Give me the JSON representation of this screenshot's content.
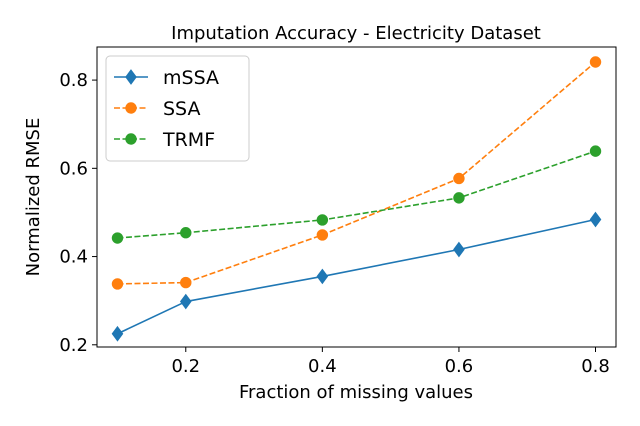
{
  "chart_data": {
    "type": "line",
    "title": "Imputation Accuracy - Electricity Dataset",
    "xlabel": "Fraction of missing values",
    "ylabel": "Normalized RMSE",
    "x": [
      0.1,
      0.2,
      0.4,
      0.6,
      0.8
    ],
    "xlim": [
      0.07,
      0.83
    ],
    "ylim": [
      0.195,
      0.875
    ],
    "xticks": [
      0.2,
      0.4,
      0.6,
      0.8
    ],
    "xtick_labels": [
      "0.2",
      "0.4",
      "0.6",
      "0.8"
    ],
    "yticks": [
      0.2,
      0.4,
      0.6,
      0.8
    ],
    "ytick_labels": [
      "0.2",
      "0.4",
      "0.6",
      "0.8"
    ],
    "grid": false,
    "legend_position": "upper-left",
    "series": [
      {
        "name": "mSSA",
        "values": [
          0.225,
          0.298,
          0.355,
          0.416,
          0.484
        ],
        "color": "#1f77b4",
        "line_style": "solid",
        "marker": "diamond"
      },
      {
        "name": "SSA",
        "values": [
          0.338,
          0.341,
          0.449,
          0.577,
          0.841
        ],
        "color": "#ff7f0e",
        "line_style": "dashed",
        "marker": "circle"
      },
      {
        "name": "TRMF",
        "values": [
          0.442,
          0.454,
          0.483,
          0.533,
          0.639
        ],
        "color": "#2ca02c",
        "line_style": "dashed",
        "marker": "circle"
      }
    ]
  }
}
